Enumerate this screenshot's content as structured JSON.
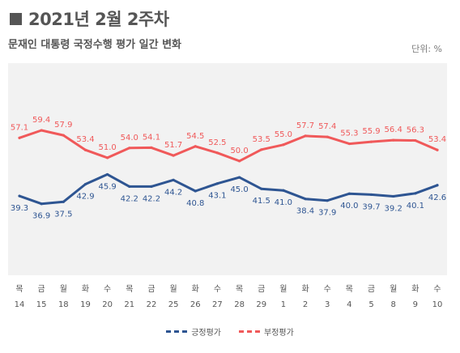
{
  "header": {
    "title": "2021년 2월 2주차",
    "subtitle": "문재인 대통령 국정수행 평가 일간 변화",
    "unit": "단위: %"
  },
  "colors": {
    "positive": "#2e5592",
    "negative": "#f0595a",
    "plot_bg": "#f2f2f2",
    "text": "#555555"
  },
  "chart_data": {
    "type": "line",
    "x": [
      {
        "day": "목",
        "date": "14"
      },
      {
        "day": "금",
        "date": "15"
      },
      {
        "day": "월",
        "date": "18"
      },
      {
        "day": "화",
        "date": "19"
      },
      {
        "day": "수",
        "date": "20"
      },
      {
        "day": "목",
        "date": "21"
      },
      {
        "day": "금",
        "date": "22"
      },
      {
        "day": "월",
        "date": "25"
      },
      {
        "day": "화",
        "date": "26"
      },
      {
        "day": "수",
        "date": "27"
      },
      {
        "day": "목",
        "date": "28"
      },
      {
        "day": "금",
        "date": "29"
      },
      {
        "day": "월",
        "date": "1"
      },
      {
        "day": "화",
        "date": "2"
      },
      {
        "day": "수",
        "date": "3"
      },
      {
        "day": "목",
        "date": "4"
      },
      {
        "day": "금",
        "date": "5"
      },
      {
        "day": "월",
        "date": "8"
      },
      {
        "day": "화",
        "date": "9"
      },
      {
        "day": "수",
        "date": "10"
      }
    ],
    "series": [
      {
        "name": "긍정평가",
        "color": "#2e5592",
        "values": [
          39.3,
          36.9,
          37.5,
          42.9,
          45.9,
          42.2,
          42.2,
          44.2,
          40.8,
          43.1,
          45.0,
          41.5,
          41.0,
          38.4,
          37.9,
          40.0,
          39.7,
          39.2,
          40.1,
          42.6
        ]
      },
      {
        "name": "부정평가",
        "color": "#f0595a",
        "values": [
          57.1,
          59.4,
          57.9,
          53.4,
          51.0,
          54.0,
          54.1,
          51.7,
          54.5,
          52.5,
          50.0,
          53.5,
          55.0,
          57.7,
          57.4,
          55.3,
          55.9,
          56.4,
          56.3,
          53.4
        ]
      }
    ],
    "ylim": [
      15,
      80
    ],
    "legend_position": "bottom-center",
    "grid": false
  }
}
